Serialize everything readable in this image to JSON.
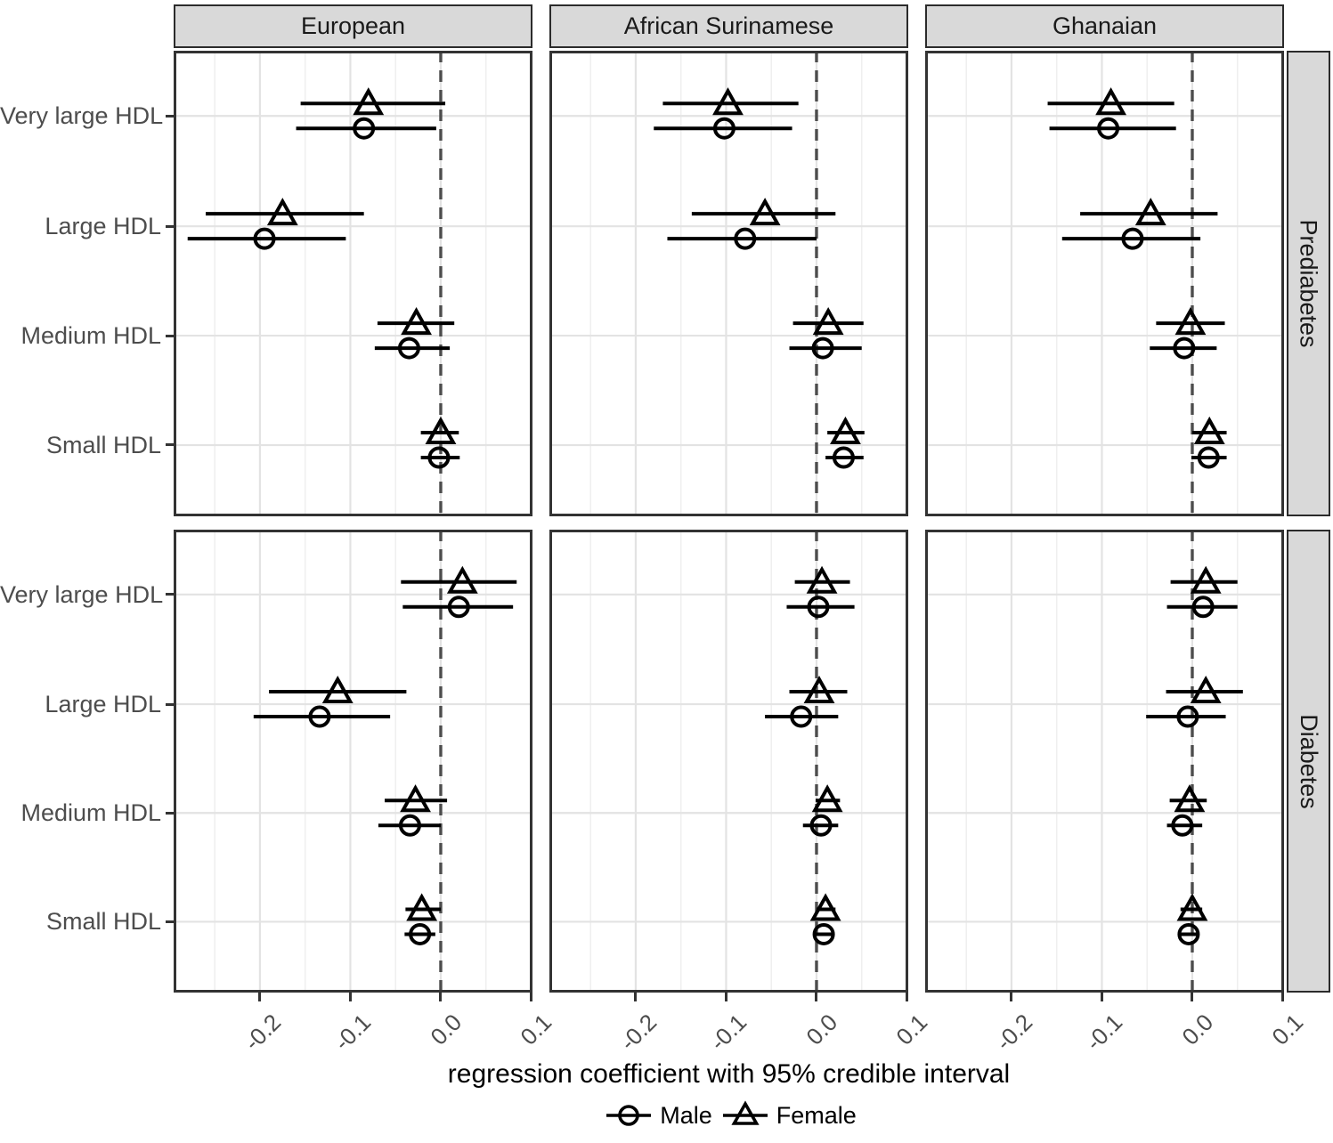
{
  "chart_data": {
    "type": "scatter",
    "subtype": "faceted-forest-plot",
    "title": "",
    "xlabel": "regression coefficient with 95% credible interval",
    "x_range": [
      -0.2955,
      0.1015
    ],
    "x_ticks": [
      -0.2,
      -0.1,
      0.0,
      0.1
    ],
    "x_tick_labels": [
      "-0.2",
      "-0.1",
      "0.0",
      "0.1"
    ],
    "x_minor_gridlines": [
      -0.25,
      -0.15,
      -0.05,
      0.05
    ],
    "zero_line": 0.0,
    "grid": true,
    "legend_position": "bottom",
    "col_facets": [
      "European",
      "African Surinamese",
      "Ghanaian"
    ],
    "row_facets": [
      "Prediabetes",
      "Diabetes"
    ],
    "categories": [
      "Very large HDL",
      "Large HDL",
      "Medium HDL",
      "Small HDL"
    ],
    "legend": [
      {
        "label": "Male",
        "marker": "circle"
      },
      {
        "label": "Female",
        "marker": "triangle"
      }
    ],
    "panels": [
      {
        "row_facet": "Prediabetes",
        "col_facet": "European",
        "points": [
          {
            "category": "Very large HDL",
            "female": {
              "est": -0.08,
              "lo": -0.155,
              "hi": 0.005
            },
            "male": {
              "est": -0.085,
              "lo": -0.16,
              "hi": -0.005
            }
          },
          {
            "category": "Large HDL",
            "female": {
              "est": -0.175,
              "lo": -0.26,
              "hi": -0.085
            },
            "male": {
              "est": -0.195,
              "lo": -0.28,
              "hi": -0.105
            }
          },
          {
            "category": "Medium HDL",
            "female": {
              "est": -0.027,
              "lo": -0.07,
              "hi": 0.015
            },
            "male": {
              "est": -0.035,
              "lo": -0.073,
              "hi": 0.01
            }
          },
          {
            "category": "Small HDL",
            "female": {
              "est": 0.0,
              "lo": -0.022,
              "hi": 0.02
            },
            "male": {
              "est": -0.002,
              "lo": -0.022,
              "hi": 0.021
            }
          }
        ]
      },
      {
        "row_facet": "Prediabetes",
        "col_facet": "African Surinamese",
        "points": [
          {
            "category": "Very large HDL",
            "female": {
              "est": -0.098,
              "lo": -0.17,
              "hi": -0.02
            },
            "male": {
              "est": -0.102,
              "lo": -0.18,
              "hi": -0.027
            }
          },
          {
            "category": "Large HDL",
            "female": {
              "est": -0.057,
              "lo": -0.138,
              "hi": 0.021
            },
            "male": {
              "est": -0.079,
              "lo": -0.165,
              "hi": 0.0
            }
          },
          {
            "category": "Medium HDL",
            "female": {
              "est": 0.013,
              "lo": -0.026,
              "hi": 0.052
            },
            "male": {
              "est": 0.007,
              "lo": -0.03,
              "hi": 0.05
            }
          },
          {
            "category": "Small HDL",
            "female": {
              "est": 0.032,
              "lo": 0.012,
              "hi": 0.053
            },
            "male": {
              "est": 0.03,
              "lo": 0.01,
              "hi": 0.052
            }
          }
        ]
      },
      {
        "row_facet": "Prediabetes",
        "col_facet": "Ghanaian",
        "points": [
          {
            "category": "Very large HDL",
            "female": {
              "est": -0.09,
              "lo": -0.16,
              "hi": -0.02
            },
            "male": {
              "est": -0.093,
              "lo": -0.158,
              "hi": -0.018
            }
          },
          {
            "category": "Large HDL",
            "female": {
              "est": -0.046,
              "lo": -0.124,
              "hi": 0.028
            },
            "male": {
              "est": -0.066,
              "lo": -0.144,
              "hi": 0.009
            }
          },
          {
            "category": "Medium HDL",
            "female": {
              "est": -0.002,
              "lo": -0.04,
              "hi": 0.036
            },
            "male": {
              "est": -0.009,
              "lo": -0.047,
              "hi": 0.027
            }
          },
          {
            "category": "Small HDL",
            "female": {
              "est": 0.019,
              "lo": 0.0,
              "hi": 0.038
            },
            "male": {
              "est": 0.018,
              "lo": -0.001,
              "hi": 0.038
            }
          }
        ]
      },
      {
        "row_facet": "Diabetes",
        "col_facet": "European",
        "points": [
          {
            "category": "Very large HDL",
            "female": {
              "est": 0.024,
              "lo": -0.044,
              "hi": 0.084
            },
            "male": {
              "est": 0.02,
              "lo": -0.042,
              "hi": 0.08
            }
          },
          {
            "category": "Large HDL",
            "female": {
              "est": -0.114,
              "lo": -0.19,
              "hi": -0.038
            },
            "male": {
              "est": -0.134,
              "lo": -0.207,
              "hi": -0.056
            }
          },
          {
            "category": "Medium HDL",
            "female": {
              "est": -0.028,
              "lo": -0.062,
              "hi": 0.007
            },
            "male": {
              "est": -0.034,
              "lo": -0.069,
              "hi": 0.0
            }
          },
          {
            "category": "Small HDL",
            "female": {
              "est": -0.021,
              "lo": -0.039,
              "hi": 0.0
            },
            "male": {
              "est": -0.023,
              "lo": -0.04,
              "hi": -0.006
            }
          }
        ]
      },
      {
        "row_facet": "Diabetes",
        "col_facet": "African Surinamese",
        "points": [
          {
            "category": "Very large HDL",
            "female": {
              "est": 0.006,
              "lo": -0.024,
              "hi": 0.037
            },
            "male": {
              "est": 0.002,
              "lo": -0.033,
              "hi": 0.042
            }
          },
          {
            "category": "Large HDL",
            "female": {
              "est": 0.003,
              "lo": -0.03,
              "hi": 0.034
            },
            "male": {
              "est": -0.017,
              "lo": -0.057,
              "hi": 0.024
            }
          },
          {
            "category": "Medium HDL",
            "female": {
              "est": 0.012,
              "lo": -0.001,
              "hi": 0.026
            },
            "male": {
              "est": 0.005,
              "lo": -0.015,
              "hi": 0.024
            }
          },
          {
            "category": "Small HDL",
            "female": {
              "est": 0.01,
              "lo": 0.0,
              "hi": 0.021
            },
            "male": {
              "est": 0.008,
              "lo": -0.001,
              "hi": 0.018
            }
          }
        ]
      },
      {
        "row_facet": "Diabetes",
        "col_facet": "Ghanaian",
        "points": [
          {
            "category": "Very large HDL",
            "female": {
              "est": 0.015,
              "lo": -0.024,
              "hi": 0.05
            },
            "male": {
              "est": 0.012,
              "lo": -0.028,
              "hi": 0.05
            }
          },
          {
            "category": "Large HDL",
            "female": {
              "est": 0.015,
              "lo": -0.029,
              "hi": 0.056
            },
            "male": {
              "est": -0.005,
              "lo": -0.051,
              "hi": 0.037
            }
          },
          {
            "category": "Medium HDL",
            "female": {
              "est": -0.003,
              "lo": -0.025,
              "hi": 0.016
            },
            "male": {
              "est": -0.011,
              "lo": -0.028,
              "hi": 0.011
            }
          },
          {
            "category": "Small HDL",
            "female": {
              "est": 0.0,
              "lo": -0.013,
              "hi": 0.011
            },
            "male": {
              "est": -0.004,
              "lo": -0.014,
              "hi": 0.006
            }
          }
        ]
      }
    ],
    "colors": {
      "point": "#000000",
      "zero_line": "#4d4d4d",
      "grid_major": "#e3e3e3",
      "grid_minor": "#efefef",
      "panel_border": "#333333",
      "strip_bg": "#d9d9d9",
      "axis_text": "#4d4d4d"
    }
  }
}
